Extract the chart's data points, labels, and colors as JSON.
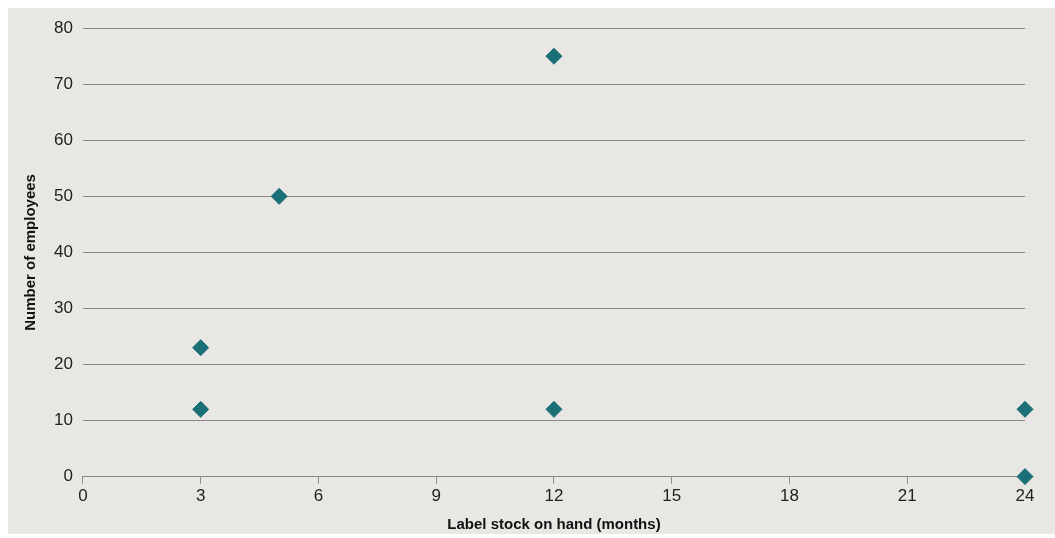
{
  "chart_data": {
    "type": "scatter",
    "xlabel": "Label stock on hand (months)",
    "ylabel": "Number of employees",
    "x": [
      3,
      3,
      5,
      12,
      12,
      24,
      24
    ],
    "values": [
      23,
      12,
      50,
      75,
      12,
      12,
      0
    ],
    "color": "#1b6f77",
    "marker": "diamond",
    "xlim": [
      0,
      24
    ],
    "xticks": [
      0,
      3,
      6,
      9,
      12,
      15,
      18,
      21,
      24
    ],
    "ylim": [
      0,
      80
    ],
    "yticks": [
      0,
      10,
      20,
      30,
      40,
      50,
      60,
      70,
      80
    ],
    "grid": "y",
    "legend": false
  }
}
